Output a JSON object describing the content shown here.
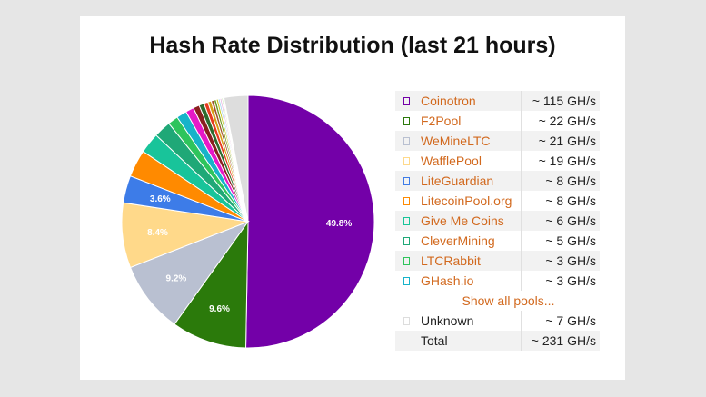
{
  "chart_data": {
    "type": "pie",
    "title": "Hash Rate Distribution (last 21 hours)",
    "slices": [
      {
        "label": "Coinotron",
        "value": 115,
        "percent_label": "49.8%",
        "color": "#7300a8"
      },
      {
        "label": "F2Pool",
        "value": 22,
        "percent_label": "9.6%",
        "color": "#2b7a0b"
      },
      {
        "label": "WeMineLTC",
        "value": 21,
        "percent_label": "9.2%",
        "color": "#b9c0d1"
      },
      {
        "label": "WafflePool",
        "value": 19,
        "percent_label": "8.4%",
        "color": "#ffd98a"
      },
      {
        "label": "LiteGuardian",
        "value": 8,
        "percent_label": "3.6%",
        "color": "#3d7ce8"
      },
      {
        "label": "LitecoinPool.org",
        "value": 8,
        "percent_label": "",
        "color": "#ff8a00"
      },
      {
        "label": "Give Me Coins",
        "value": 6,
        "percent_label": "",
        "color": "#18c49a"
      },
      {
        "label": "CleverMining",
        "value": 5,
        "percent_label": "",
        "color": "#1fa877"
      },
      {
        "label": "LTCRabbit",
        "value": 3,
        "percent_label": "",
        "color": "#2ec45c"
      },
      {
        "label": "GHash.io",
        "value": 3,
        "percent_label": "",
        "color": "#17b3c9"
      },
      {
        "label": "",
        "value": 2.4,
        "percent_label": "",
        "color": "#e619c8"
      },
      {
        "label": "",
        "value": 1.8,
        "percent_label": "",
        "color": "#8a1f1f"
      },
      {
        "label": "",
        "value": 1.5,
        "percent_label": "",
        "color": "#2e6b2e"
      },
      {
        "label": "",
        "value": 1.2,
        "percent_label": "",
        "color": "#e63b1f"
      },
      {
        "label": "",
        "value": 1.0,
        "percent_label": "",
        "color": "#d4a017"
      },
      {
        "label": "",
        "value": 0.8,
        "percent_label": "",
        "color": "#a0522d"
      },
      {
        "label": "",
        "value": 0.7,
        "percent_label": "",
        "color": "#6a9a1f"
      },
      {
        "label": "",
        "value": 0.6,
        "percent_label": "",
        "color": "#c7c71f"
      },
      {
        "label": "",
        "value": 0.5,
        "percent_label": "",
        "color": "#9fd3f0"
      },
      {
        "label": "",
        "value": 0.5,
        "percent_label": "",
        "color": "#e8b6e0"
      },
      {
        "label": "",
        "value": 0.4,
        "percent_label": "",
        "color": "#bfe8a8"
      },
      {
        "label": "",
        "value": 0.3,
        "percent_label": "",
        "color": "#f5e38a"
      },
      {
        "label": "Unknown",
        "value": 7,
        "percent_label": "",
        "color": "#dddddd"
      }
    ]
  },
  "legend": {
    "rows": [
      {
        "name": "Coinotron",
        "value": "~ 115 GH/s",
        "color": "#7300a8"
      },
      {
        "name": "F2Pool",
        "value": "~ 22 GH/s",
        "color": "#2b7a0b"
      },
      {
        "name": "WeMineLTC",
        "value": "~ 21 GH/s",
        "color": "#b9c0d1"
      },
      {
        "name": "WafflePool",
        "value": "~ 19 GH/s",
        "color": "#ffd98a"
      },
      {
        "name": "LiteGuardian",
        "value": "~ 8 GH/s",
        "color": "#3d7ce8"
      },
      {
        "name": "LitecoinPool.org",
        "value": "~ 8 GH/s",
        "color": "#ff8a00"
      },
      {
        "name": "Give Me Coins",
        "value": "~ 6 GH/s",
        "color": "#18c49a"
      },
      {
        "name": "CleverMining",
        "value": "~ 5 GH/s",
        "color": "#1fa877"
      },
      {
        "name": "LTCRabbit",
        "value": "~ 3 GH/s",
        "color": "#2ec45c"
      },
      {
        "name": "GHash.io",
        "value": "~ 3 GH/s",
        "color": "#17b3c9"
      }
    ],
    "show_all": "Show all pools...",
    "unknown": {
      "name": "Unknown",
      "value": "~ 7 GH/s",
      "color": "#dddddd"
    },
    "total": {
      "name": "Total",
      "value": "~ 231 GH/s"
    }
  }
}
